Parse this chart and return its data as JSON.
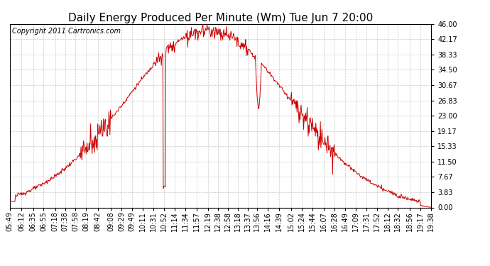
{
  "title": "Daily Energy Produced Per Minute (Wm) Tue Jun 7 20:00",
  "copyright": "Copyright 2011 Cartronics.com",
  "line_color": "#cc0000",
  "bg_color": "#ffffff",
  "plot_bg_color": "#ffffff",
  "grid_color": "#bbbbbb",
  "ylim": [
    0,
    46.0
  ],
  "yticks": [
    0.0,
    3.83,
    7.67,
    11.5,
    15.33,
    19.17,
    23.0,
    26.83,
    30.67,
    34.5,
    38.33,
    42.17,
    46.0
  ],
  "xtick_labels": [
    "05:49",
    "06:12",
    "06:35",
    "06:55",
    "07:18",
    "07:38",
    "07:58",
    "08:19",
    "08:42",
    "09:08",
    "09:29",
    "09:49",
    "10:11",
    "10:31",
    "10:52",
    "11:14",
    "11:34",
    "11:57",
    "12:19",
    "12:38",
    "12:58",
    "13:18",
    "13:37",
    "13:56",
    "14:16",
    "14:39",
    "15:02",
    "15:24",
    "15:44",
    "16:07",
    "16:28",
    "16:49",
    "17:09",
    "17:31",
    "17:52",
    "18:12",
    "18:32",
    "18:56",
    "19:17",
    "19:38"
  ],
  "title_fontsize": 11,
  "copyright_fontsize": 7,
  "tick_fontsize": 7
}
